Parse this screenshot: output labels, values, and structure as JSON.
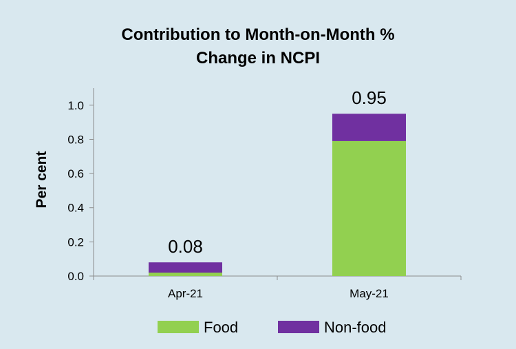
{
  "chart_data": {
    "type": "bar",
    "stacked": true,
    "title_lines": [
      "Contribution to Month-on-Month %",
      "Change in NCPI"
    ],
    "ylabel": "Per cent",
    "xlabel": "",
    "categories": [
      "Apr-21",
      "May-21"
    ],
    "series": [
      {
        "name": "Food",
        "color": "#92d050",
        "values": [
          0.02,
          0.79
        ]
      },
      {
        "name": "Non-food",
        "color": "#7030a0",
        "values": [
          0.06,
          0.16
        ]
      }
    ],
    "totals": [
      "0.08",
      "0.95"
    ],
    "ylim": [
      0.0,
      1.1
    ],
    "yticks": [
      "0.0",
      "0.2",
      "0.4",
      "0.6",
      "0.8",
      "1.0"
    ],
    "legend_position": "bottom",
    "grid": false
  }
}
